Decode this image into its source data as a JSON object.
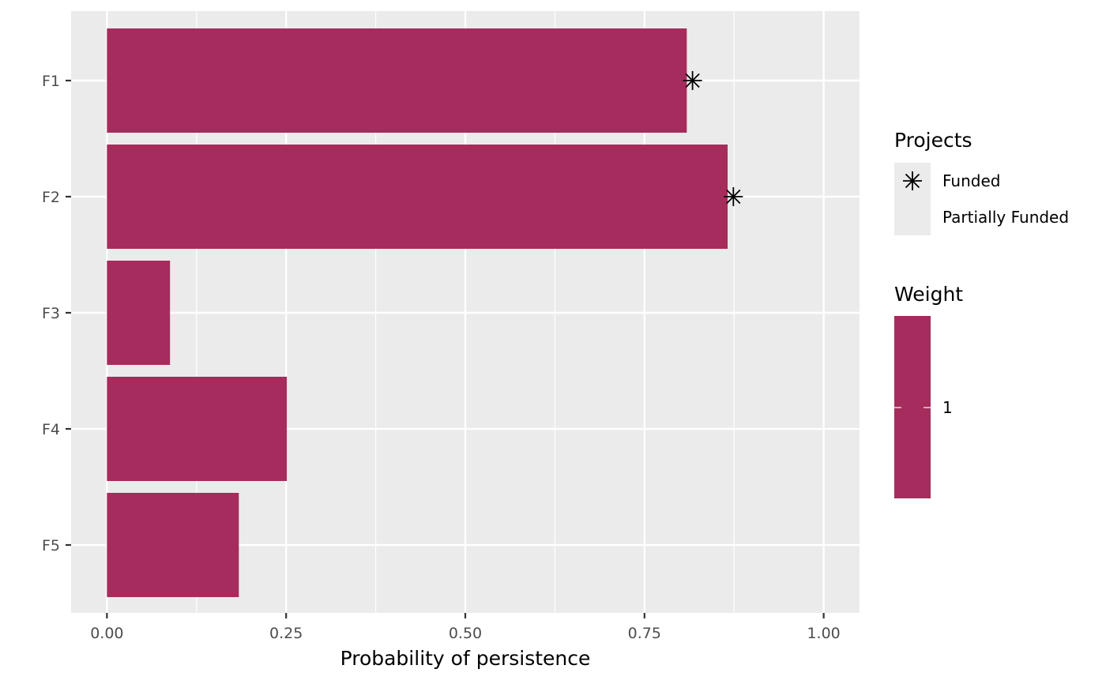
{
  "chart_data": {
    "type": "bar",
    "orientation": "horizontal",
    "categories": [
      "F1",
      "F2",
      "F3",
      "F4",
      "F5"
    ],
    "values": [
      0.809,
      0.866,
      0.088,
      0.251,
      0.184
    ],
    "funded_markers": [
      {
        "category": "F1",
        "value": 0.817
      },
      {
        "category": "F2",
        "value": 0.874
      }
    ],
    "xlabel": "Probability of persistence",
    "ylabel": "",
    "xlim": [
      -0.05,
      1.05
    ],
    "x_ticks": [
      0.0,
      0.25,
      0.5,
      0.75,
      1.0
    ],
    "x_tick_labels": [
      "0.00",
      "0.25",
      "0.50",
      "0.75",
      "1.00"
    ],
    "grid": true,
    "legend_placement": "right",
    "bar_color": "#a52c5c",
    "panel_color": "#ebebeb",
    "legends": {
      "projects": {
        "title": "Projects",
        "items": [
          "Funded",
          "Partially Funded"
        ]
      },
      "weight": {
        "title": "Weight",
        "label": "1"
      }
    }
  }
}
